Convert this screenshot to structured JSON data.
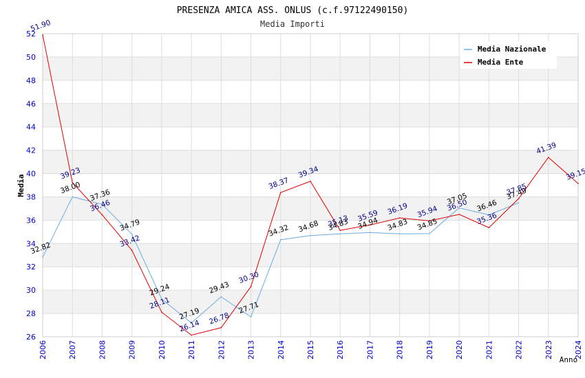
{
  "chart_data": {
    "type": "line",
    "title": "PRESENZA AMICA ASS. ONLUS (c.f.97122490150)",
    "subtitle": "Media Importi",
    "xlabel": "Anno",
    "ylabel": "Media",
    "ylim": [
      26,
      52
    ],
    "yticks": [
      "26",
      "28",
      "30",
      "32",
      "34",
      "36",
      "38",
      "40",
      "42",
      "44",
      "46",
      "48",
      "50",
      "52"
    ],
    "categories": [
      "2006",
      "2007",
      "2008",
      "2009",
      "2010",
      "2011",
      "2012",
      "2013",
      "2014",
      "2015",
      "2016",
      "2017",
      "2018",
      "2019",
      "2020",
      "2021",
      "2022",
      "2023",
      "2024"
    ],
    "legend_position": "top-right",
    "series": [
      {
        "name": "Media Nazionale",
        "color": "#6aaae4",
        "label_color": "#000000",
        "values": [
          32.82,
          38.0,
          37.36,
          34.79,
          29.24,
          27.19,
          29.43,
          27.71,
          34.32,
          34.68,
          34.83,
          34.94,
          34.83,
          34.85,
          37.05,
          36.46,
          37.49,
          null,
          null
        ],
        "labels": [
          "32.82",
          "38.00",
          "37.36",
          "34.79",
          "29.24",
          "27.19",
          "29.43",
          "27.71",
          "34.32",
          "34.68",
          "34.83",
          "34.94",
          "34.83",
          "34.85",
          "37.05",
          "36.46",
          "37.49",
          "",
          ""
        ]
      },
      {
        "name": "Media Ente",
        "color": "#e00000",
        "label_color": "#00008b",
        "values": [
          51.9,
          39.23,
          36.46,
          33.42,
          28.11,
          26.14,
          26.78,
          30.3,
          38.37,
          39.34,
          35.13,
          35.59,
          36.19,
          35.94,
          36.5,
          35.36,
          37.85,
          41.39,
          39.15
        ],
        "labels": [
          "51.90",
          "39.23",
          "36.46",
          "33.42",
          "28.11",
          "26.14",
          "26.78",
          "30.30",
          "38.37",
          "39.34",
          "35.13",
          "35.59",
          "36.19",
          "35.94",
          "36.50",
          "35.36",
          "37.85",
          "41.39",
          "39.15"
        ]
      }
    ],
    "colors": {
      "tick_label": "#0000cc",
      "grid": "#dddddd",
      "band": "#f2f2f2",
      "axis_title": "#000000",
      "title": "#000000",
      "subtitle": "#333333"
    }
  }
}
